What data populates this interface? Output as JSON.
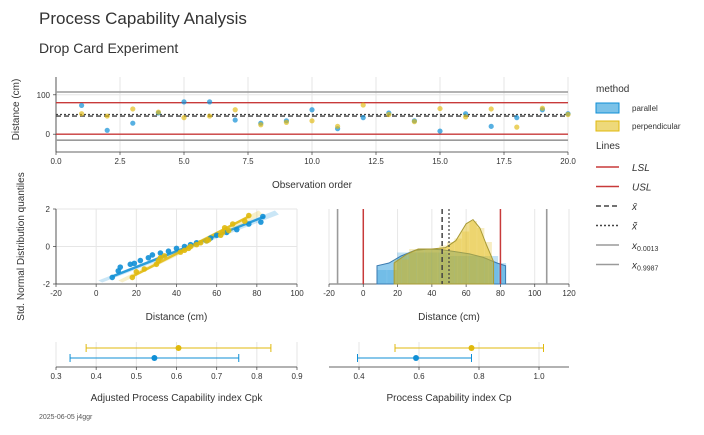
{
  "title": "Process Capability Analysis",
  "subtitle": "Drop Card Experiment",
  "footer": "2025-06-05 j4ggr",
  "colors": {
    "parallel": "#0f8fd6",
    "perpendicular": "#e0b90c",
    "limits": "#c83a3a",
    "percentile": "#9a9a9a",
    "mean": "#444444"
  },
  "chart_data": [
    {
      "type": "scatter",
      "xlabel": "Observation order",
      "ylabel": "Distance (cm)",
      "xlim": [
        0,
        20
      ],
      "ylim": [
        -45,
        145
      ],
      "xticks": [
        "0.0",
        "2.5",
        "5.0",
        "7.5",
        "10.0",
        "12.5",
        "15.0",
        "17.5",
        "20.0"
      ],
      "yticks": [
        "0",
        "100"
      ],
      "series": [
        {
          "name": "parallel",
          "x": [
            1,
            2,
            3,
            4,
            5,
            6,
            7,
            8,
            9,
            10,
            11,
            12,
            13,
            14,
            15,
            16,
            17,
            18,
            19,
            20
          ],
          "y": [
            73,
            10,
            28,
            54,
            82,
            82,
            36,
            28,
            34,
            62,
            14,
            42,
            54,
            34,
            8,
            52,
            20,
            42,
            62,
            52
          ]
        },
        {
          "name": "perpendicular",
          "x": [
            1,
            2,
            3,
            4,
            5,
            6,
            7,
            8,
            9,
            10,
            11,
            12,
            13,
            14,
            15,
            16,
            17,
            18,
            19,
            20
          ],
          "y": [
            52,
            46,
            64,
            56,
            42,
            46,
            62,
            24,
            30,
            34,
            20,
            74,
            50,
            32,
            65,
            44,
            64,
            18,
            66,
            50
          ]
        }
      ],
      "reference_lines": {
        "LSL": 0,
        "USL": 80,
        "mean": 46,
        "median": 50,
        "p0013": -15,
        "p9987": 107
      }
    },
    {
      "type": "scatter",
      "xlabel": "Distance (cm)",
      "ylabel": "Std. Normal Distribution quantiles",
      "xlim": [
        -20,
        100
      ],
      "ylim": [
        -2,
        2
      ],
      "xticks": [
        "-20",
        "0",
        "20",
        "40",
        "60",
        "80",
        "100"
      ],
      "yticks": [
        "2",
        "0",
        "-2"
      ],
      "series": [
        {
          "name": "parallel",
          "x": [
            8,
            11,
            12,
            17,
            19,
            22,
            26,
            28,
            32,
            36,
            40,
            44,
            47,
            50,
            55,
            57,
            60,
            65,
            70,
            76,
            82,
            83
          ],
          "y": [
            -1.65,
            -1.3,
            -1.1,
            -0.95,
            -0.9,
            -0.75,
            -0.6,
            -0.45,
            -0.35,
            -0.25,
            -0.1,
            0,
            0.1,
            0.2,
            0.3,
            0.45,
            0.6,
            0.75,
            0.9,
            1.2,
            1.3,
            1.6
          ]
        },
        {
          "name": "perpendicular",
          "x": [
            18,
            20,
            24,
            30,
            31,
            32,
            34,
            42,
            44,
            46,
            47,
            50,
            52,
            55,
            56,
            62,
            63,
            66,
            64,
            68,
            74,
            76
          ],
          "y": [
            -1.65,
            -1.35,
            -1.2,
            -0.95,
            -0.75,
            -0.6,
            -0.5,
            -0.3,
            -0.2,
            -0.1,
            0,
            0.1,
            0.2,
            0.3,
            0.35,
            0.6,
            0.75,
            0.85,
            1,
            1.2,
            1.35,
            1.65
          ]
        }
      ],
      "fit_lines": [
        {
          "name": "parallel",
          "x": [
            8,
            84
          ],
          "y": [
            -1.6,
            1.6
          ]
        },
        {
          "name": "perpendicular",
          "x": [
            18,
            76
          ],
          "y": [
            -1.6,
            1.6
          ]
        }
      ]
    },
    {
      "type": "area",
      "xlabel": "Distance (cm)",
      "xlim": [
        -20,
        120
      ],
      "xticks": [
        "-20",
        "0",
        "20",
        "40",
        "60",
        "80",
        "100",
        "120"
      ],
      "series": [
        {
          "name": "parallel",
          "hist": {
            "bins": [
              8,
              13.9,
              19.8,
              25.7,
              31.6,
              37.5,
              43.4,
              49.3,
              55.2,
              61.1,
              67,
              72.9,
              78.8,
              83.5
            ],
            "values": [
              0.2,
              0.2,
              0.45,
              0.45,
              0.45,
              0.45,
              0.45,
              0.4,
              0.4,
              0.4,
              0.4,
              0.4,
              0.3
            ]
          },
          "kde": {
            "x": [
              8,
              15,
              22,
              30,
              38,
              46,
              54,
              62,
              70,
              78,
              83
            ],
            "y": [
              0.26,
              0.3,
              0.4,
              0.48,
              0.5,
              0.49,
              0.46,
              0.43,
              0.38,
              0.3,
              0.26
            ]
          }
        },
        {
          "name": "perpendicular",
          "hist": {
            "bins": [
              18,
              22.4,
              26.8,
              31.2,
              35.6,
              40,
              44.4,
              48.8,
              53.2,
              57.6,
              62,
              66.4,
              70.8,
              75.2
            ],
            "values": [
              0.35,
              0.35,
              0.5,
              0.5,
              0.5,
              0.5,
              0.55,
              0.6,
              0.65,
              0.75,
              0.9,
              0.8,
              0.6
            ]
          },
          "kde": {
            "x": [
              18,
              25,
              32,
              40,
              48,
              54,
              60,
              64,
              68,
              72,
              76
            ],
            "y": [
              0.3,
              0.42,
              0.5,
              0.5,
              0.52,
              0.62,
              0.86,
              0.92,
              0.8,
              0.55,
              0.32
            ]
          }
        }
      ]
    },
    {
      "type": "scatter",
      "xlabel": "Adjusted Process Capability index Cpk",
      "xlim": [
        0.3,
        0.9
      ],
      "xticks": [
        "0.3",
        "0.4",
        "0.5",
        "0.6",
        "0.7",
        "0.8",
        "0.9"
      ],
      "series": [
        {
          "name": "perpendicular",
          "value": 0.605,
          "lower": 0.375,
          "upper": 0.835
        },
        {
          "name": "parallel",
          "value": 0.545,
          "lower": 0.335,
          "upper": 0.755
        }
      ]
    },
    {
      "type": "scatter",
      "xlabel": "Process Capability index Cp",
      "xlim": [
        0.3,
        1.1
      ],
      "xticks": [
        "0.4",
        "0.6",
        "0.8",
        "1.0"
      ],
      "series": [
        {
          "name": "perpendicular",
          "value": 0.775,
          "lower": 0.52,
          "upper": 1.015
        },
        {
          "name": "parallel",
          "value": 0.59,
          "lower": 0.395,
          "upper": 0.775
        }
      ]
    }
  ],
  "legend": {
    "method_title": "method",
    "method_items": [
      {
        "label": "parallel",
        "color": "#0f8fd6"
      },
      {
        "label": "perpendicular",
        "color": "#e0b90c"
      }
    ],
    "lines_title": "Lines",
    "lines_items": [
      {
        "base": "LSL",
        "sub": "",
        "style": "solid",
        "color": "#c83a3a",
        "italic": true
      },
      {
        "base": "USL",
        "sub": "",
        "style": "solid",
        "color": "#c83a3a",
        "italic": true
      },
      {
        "base": "x̄",
        "sub": "",
        "style": "dashed",
        "color": "#444444",
        "italic": true
      },
      {
        "base": "x̃",
        "sub": "",
        "style": "dotted",
        "color": "#444444",
        "italic": true
      },
      {
        "base": "x",
        "sub": "0.0013",
        "style": "solid",
        "color": "#9a9a9a",
        "italic": true
      },
      {
        "base": "x",
        "sub": "0.9987",
        "style": "solid",
        "color": "#9a9a9a",
        "italic": true
      }
    ]
  }
}
